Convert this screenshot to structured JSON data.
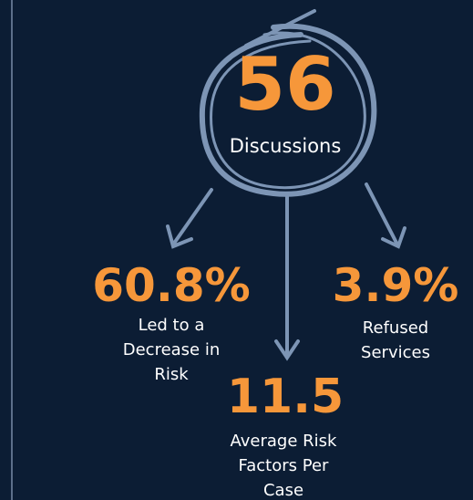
{
  "headline": {
    "value": "56",
    "label": "Discussions"
  },
  "stats": [
    {
      "value": "60.8%",
      "lines": [
        "Led to a",
        "Decrease in",
        "Risk"
      ]
    },
    {
      "value": "11.5",
      "lines": [
        "Average Risk",
        "Factors Per",
        "Case"
      ]
    },
    {
      "value": "3.9%",
      "lines": [
        "Refused",
        "Services"
      ]
    }
  ]
}
